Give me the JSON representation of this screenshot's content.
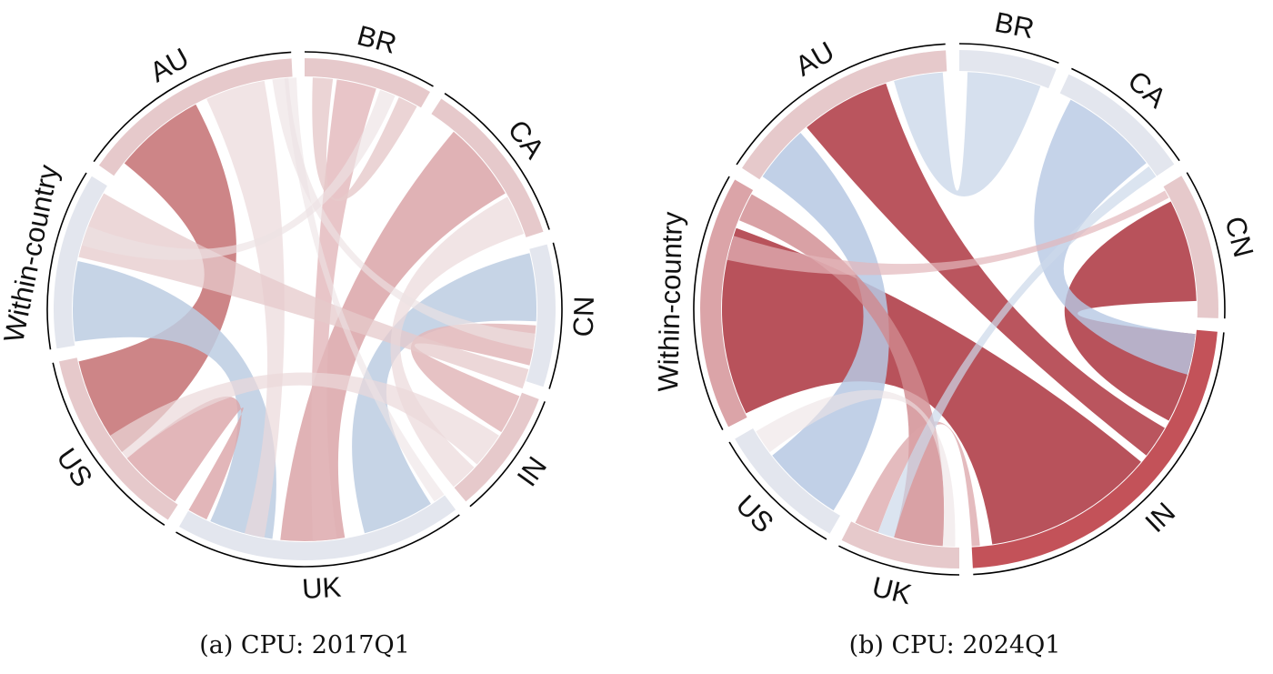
{
  "panels": [
    {
      "caption": "(a) CPU: 2017Q1",
      "segments": [
        {
          "label": "BR",
          "start": 0,
          "end": 30
        },
        {
          "label": "CA",
          "start": 33,
          "end": 72
        },
        {
          "label": "CN",
          "start": 75,
          "end": 108
        },
        {
          "label": "IN",
          "start": 111,
          "end": 140
        },
        {
          "label": "UK",
          "start": 143,
          "end": 210
        },
        {
          "label": "US",
          "start": 213,
          "end": 258
        },
        {
          "label": "Within-country",
          "start": 261,
          "end": 302
        },
        {
          "label": "AU",
          "start": 305,
          "end": 357
        }
      ],
      "segment_colors": {
        "BR": "#e6c9cb",
        "CA": "#e6c9cb",
        "CN": "#e3e6ee",
        "IN": "#e6c9cb",
        "UK": "#e3e6ee",
        "US": "#e6c9cb",
        "Within-country": "#e3e6ee",
        "AU": "#e6c9cb"
      },
      "chords": [
        {
          "from": [
            309,
            332
          ],
          "to": [
            232,
            257
          ],
          "color": "#c8787a",
          "opacity": 0.9
        },
        {
          "from": [
            262,
            282
          ],
          "to": [
            188,
            204
          ],
          "color": "#bccce2",
          "opacity": 0.85
        },
        {
          "from": [
            76,
            93
          ],
          "to": [
            147,
            165
          ],
          "color": "#bccce2",
          "opacity": 0.85
        },
        {
          "from": [
            40,
            60
          ],
          "to": [
            170,
            186
          ],
          "color": "#dba4a8",
          "opacity": 0.85
        },
        {
          "from": [
            94,
            104
          ],
          "to": [
            112,
            122
          ],
          "color": "#e2b7ba",
          "opacity": 0.85
        },
        {
          "from": [
            214,
            230
          ],
          "to": [
            205,
            210
          ],
          "color": "#dba4a8",
          "opacity": 0.8
        },
        {
          "from": [
            8,
            18
          ],
          "to": [
            172,
            178
          ],
          "color": "#e2b7ba",
          "opacity": 0.8
        },
        {
          "from": [
            2,
            7
          ],
          "to": [
            24,
            29
          ],
          "color": "#e6c9cb",
          "opacity": 0.8
        },
        {
          "from": [
            335,
            350
          ],
          "to": [
            190,
            195
          ],
          "color": "#ebd8da",
          "opacity": 0.7
        },
        {
          "from": [
            283,
            300
          ],
          "to": [
            105,
            110
          ],
          "color": "#e6c9cb",
          "opacity": 0.75
        },
        {
          "from": [
            123,
            132
          ],
          "to": [
            230,
            237
          ],
          "color": "#ebd8da",
          "opacity": 0.7
        },
        {
          "from": [
            61,
            71
          ],
          "to": [
            133,
            140
          ],
          "color": "#ebd8da",
          "opacity": 0.7
        },
        {
          "from": [
            19,
            23
          ],
          "to": [
            286,
            291
          ],
          "color": "#ece2e4",
          "opacity": 0.65
        },
        {
          "from": [
            352,
            356
          ],
          "to": [
            96,
            100
          ],
          "color": "#ece2e4",
          "opacity": 0.65
        },
        {
          "from": [
            143,
            146
          ],
          "to": [
            355,
            358
          ],
          "color": "#ece2e4",
          "opacity": 0.6
        }
      ]
    },
    {
      "caption": "(b) CPU: 2024Q1",
      "segments": [
        {
          "label": "BR",
          "start": 0,
          "end": 22
        },
        {
          "label": "CA",
          "start": 25,
          "end": 56
        },
        {
          "label": "CN",
          "start": 59,
          "end": 92
        },
        {
          "label": "IN",
          "start": 95,
          "end": 177
        },
        {
          "label": "UK",
          "start": 180,
          "end": 207
        },
        {
          "label": "US",
          "start": 210,
          "end": 240
        },
        {
          "label": "Within-country",
          "start": 243,
          "end": 300
        },
        {
          "label": "AU",
          "start": 303,
          "end": 357
        }
      ],
      "segment_colors": {
        "BR": "#e3e6ee",
        "CA": "#e3e6ee",
        "CN": "#e6c9cb",
        "IN": "#c35259",
        "UK": "#e6c9cb",
        "US": "#e3e6ee",
        "Within-country": "#dba4a8",
        "AU": "#e6c9cb"
      },
      "chords": [
        {
          "from": [
            244,
            290
          ],
          "to": [
            130,
            172
          ],
          "color": "#b2434d",
          "opacity": 0.92
        },
        {
          "from": [
            63,
            88
          ],
          "to": [
            96,
            118
          ],
          "color": "#b2434d",
          "opacity": 0.92
        },
        {
          "from": [
            320,
            342
          ],
          "to": [
            120,
            128
          ],
          "color": "#b2434d",
          "opacity": 0.9
        },
        {
          "from": [
            304,
            318
          ],
          "to": [
            212,
            232
          ],
          "color": "#b6c8e3",
          "opacity": 0.85
        },
        {
          "from": [
            28,
            52
          ],
          "to": [
            96,
            106
          ],
          "color": "#b6c8e3",
          "opacity": 0.8
        },
        {
          "from": [
            2,
            20
          ],
          "to": [
            344,
            356
          ],
          "color": "#ccd8ea",
          "opacity": 0.8
        },
        {
          "from": [
            292,
            299
          ],
          "to": [
            184,
            196
          ],
          "color": "#d08a8f",
          "opacity": 0.8
        },
        {
          "from": [
            175,
            177
          ],
          "to": [
            200,
            206
          ],
          "color": "#dba4a8",
          "opacity": 0.75
        },
        {
          "from": [
            53,
            56
          ],
          "to": [
            196,
            200
          ],
          "color": "#ccd8ea",
          "opacity": 0.7
        },
        {
          "from": [
            60,
            62
          ],
          "to": [
            282,
            288
          ],
          "color": "#e2b7ba",
          "opacity": 0.7
        },
        {
          "from": [
            233,
            239
          ],
          "to": [
            181,
            184
          ],
          "color": "#ece2e4",
          "opacity": 0.6
        }
      ]
    }
  ]
}
